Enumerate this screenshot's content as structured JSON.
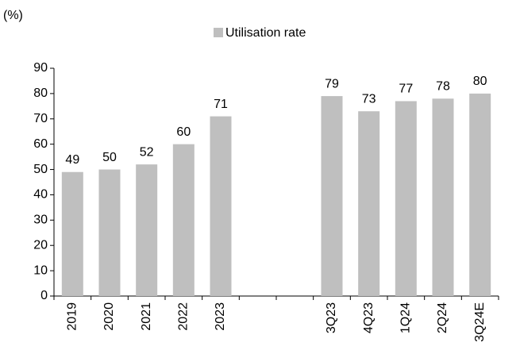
{
  "chart_data": {
    "type": "bar",
    "unit_label": "(%)",
    "categories": [
      "2019",
      "2020",
      "2021",
      "2022",
      "2023",
      null,
      null,
      "3Q23",
      "4Q23",
      "1Q24",
      "2Q24",
      "3Q24E"
    ],
    "series": [
      {
        "name": "Utilisation rate",
        "color": "#bfbfbf",
        "values": [
          49,
          50,
          52,
          60,
          71,
          null,
          null,
          79,
          73,
          77,
          78,
          80
        ]
      }
    ],
    "ylim": [
      0,
      90
    ],
    "yticks": [
      0,
      10,
      20,
      30,
      40,
      50,
      60,
      70,
      80,
      90
    ],
    "grid": false,
    "legend": "top"
  }
}
